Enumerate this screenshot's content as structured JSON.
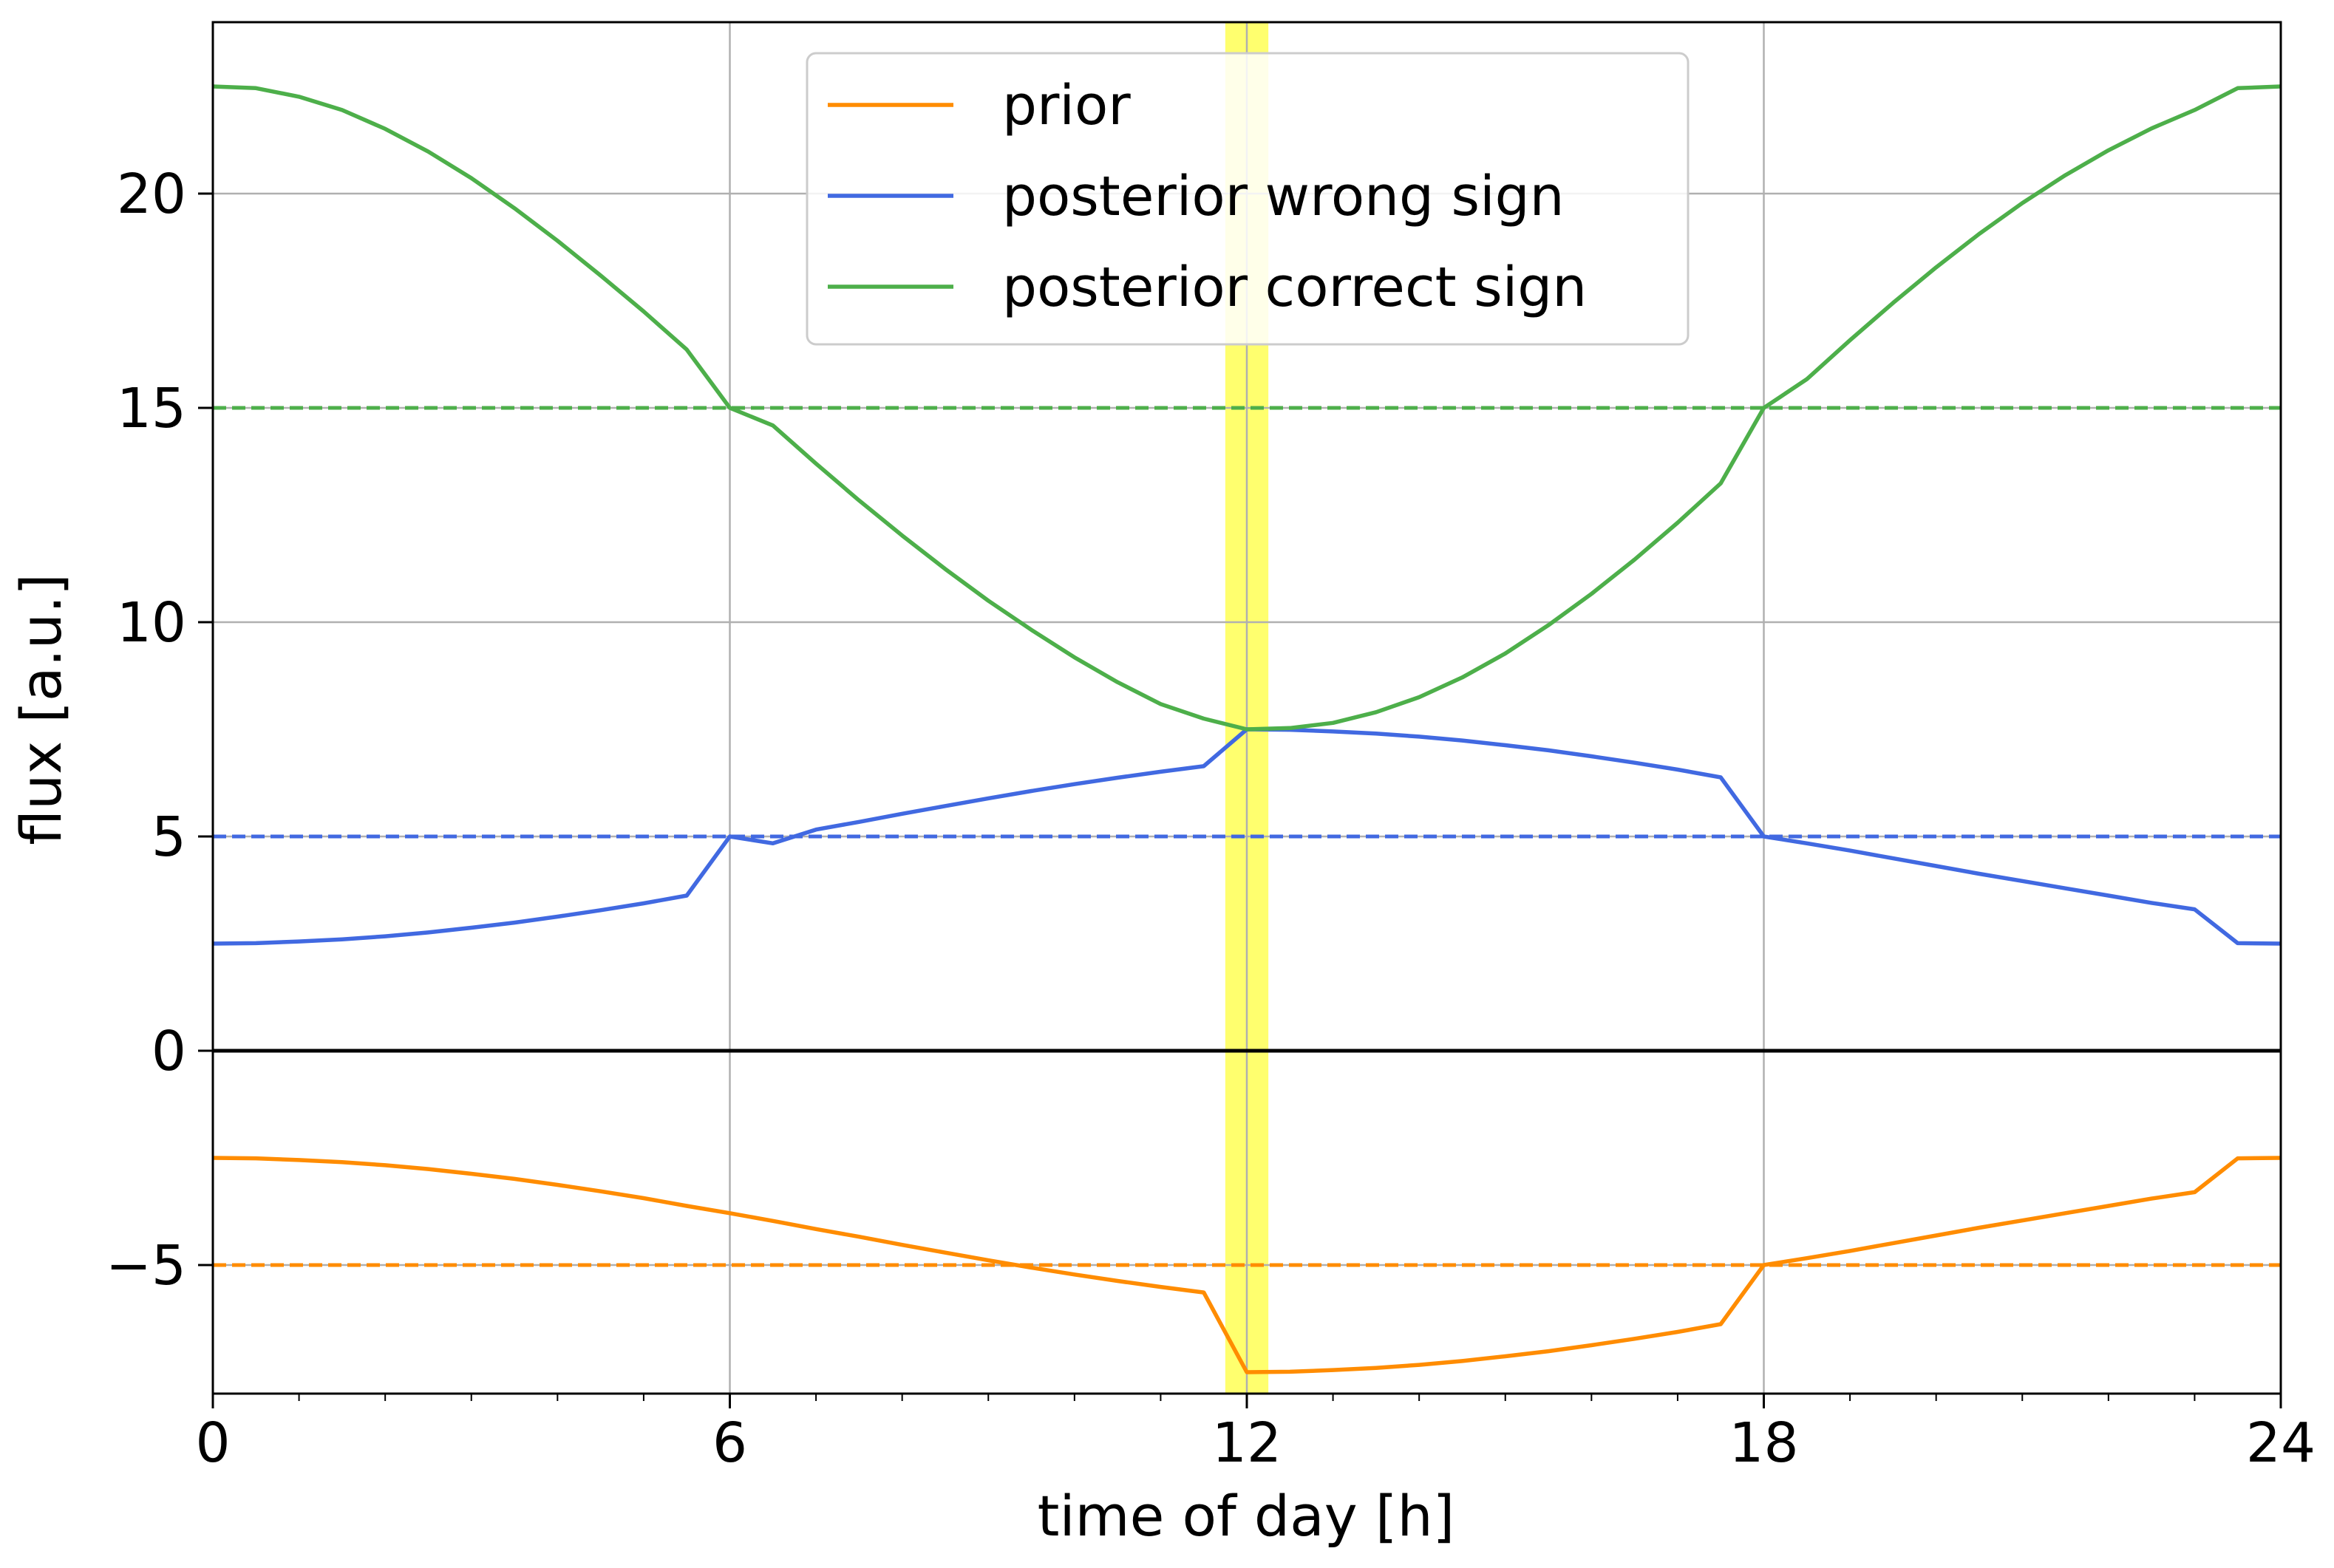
{
  "chart_data": {
    "type": "line",
    "title": "",
    "xlabel": "time of day [h]",
    "ylabel": "flux [a.u.]",
    "xlim": [
      0,
      24
    ],
    "ylim": [
      -8,
      24
    ],
    "xticks": [
      0,
      6,
      12,
      18,
      24
    ],
    "yticks": [
      -5,
      0,
      5,
      10,
      15,
      20
    ],
    "ytick_labels": [
      "−5",
      "0",
      "5",
      "10",
      "15",
      "20"
    ],
    "grid": true,
    "legend_position": "top-center",
    "highlight_band": {
      "x": [
        11.75,
        12.25
      ],
      "color": "#ffff66"
    },
    "zero_line": {
      "y": 0,
      "color": "#000000"
    },
    "x": [
      0,
      0.5,
      1,
      1.5,
      2,
      2.5,
      3,
      3.5,
      4,
      4.5,
      5,
      5.5,
      6,
      6.5,
      7,
      7.5,
      8,
      8.5,
      9,
      9.5,
      10,
      10.5,
      11,
      11.5,
      12,
      12.5,
      13,
      13.5,
      14,
      14.5,
      15,
      15.5,
      16,
      16.5,
      17,
      17.5,
      18,
      18.5,
      19,
      19.5,
      20,
      20.5,
      21,
      21.5,
      22,
      22.5,
      23,
      23.5,
      24
    ],
    "series": [
      {
        "name": "prior",
        "color": "#ff8c00",
        "mean": -5,
        "values": [
          -2.5,
          -2.51,
          -2.55,
          -2.6,
          -2.67,
          -2.76,
          -2.87,
          -2.99,
          -3.13,
          -3.28,
          -3.44,
          -3.62,
          -3.79,
          -3.97,
          -4.16,
          -4.34,
          -4.53,
          -4.71,
          -4.89,
          -5.06,
          -5.22,
          -5.37,
          -5.51,
          -5.64,
          -7.5,
          -7.49,
          -7.45,
          -7.4,
          -7.33,
          -7.24,
          -7.13,
          -7.01,
          -6.87,
          -6.72,
          -6.56,
          -6.38,
          -5,
          -4.84,
          -4.67,
          -4.49,
          -4.31,
          -4.13,
          -3.96,
          -3.79,
          -3.62,
          -3.45,
          -3.3,
          -2.51,
          -2.5
        ]
      },
      {
        "name": "posterior wrong sign",
        "color": "#4169e1",
        "mean": 5,
        "values": [
          2.5,
          2.51,
          2.55,
          2.6,
          2.67,
          2.76,
          2.87,
          2.99,
          3.13,
          3.28,
          3.44,
          3.62,
          5,
          4.84,
          5.16,
          5.34,
          5.53,
          5.71,
          5.89,
          6.06,
          6.22,
          6.37,
          6.51,
          6.64,
          7.5,
          7.49,
          7.45,
          7.4,
          7.33,
          7.24,
          7.13,
          7.01,
          6.87,
          6.72,
          6.56,
          6.38,
          5,
          4.84,
          4.67,
          4.49,
          4.31,
          4.13,
          3.96,
          3.79,
          3.62,
          3.45,
          3.3,
          2.51,
          2.5
        ]
      },
      {
        "name": "posterior correct sign",
        "color": "#4daf4a",
        "mean": 15,
        "values": [
          22.5,
          22.46,
          22.26,
          21.95,
          21.51,
          20.98,
          20.36,
          19.66,
          18.9,
          18.09,
          17.25,
          16.36,
          15,
          14.59,
          13.7,
          12.84,
          12.02,
          11.24,
          10.5,
          9.82,
          9.18,
          8.6,
          8.09,
          7.75,
          7.5,
          7.53,
          7.65,
          7.9,
          8.25,
          8.71,
          9.27,
          9.93,
          10.66,
          11.46,
          12.32,
          13.24,
          15,
          15.67,
          16.58,
          17.45,
          18.28,
          19.06,
          19.78,
          20.43,
          21.01,
          21.52,
          21.95,
          22.46,
          22.5
        ]
      }
    ]
  }
}
